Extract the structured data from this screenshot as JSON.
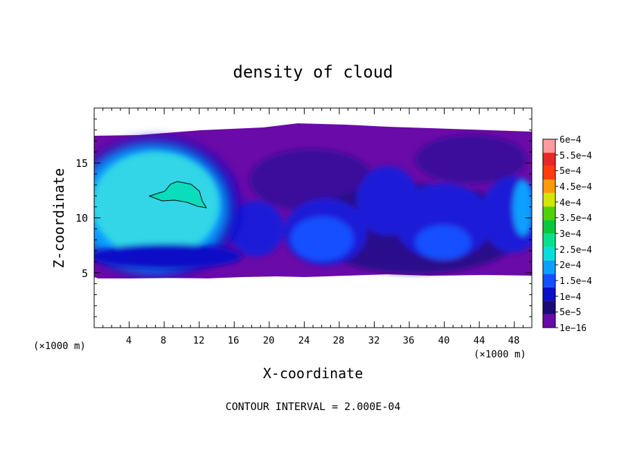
{
  "chart_data": {
    "type": "heatmap",
    "title": "density of cloud",
    "xlabel": "X-coordinate",
    "ylabel": "Z-coordinate",
    "x_units": "(×1000 m)",
    "z_units": "(×1000 m)",
    "footer": "CONTOUR INTERVAL = 2.000E-04",
    "xlim": [
      0,
      50
    ],
    "ylim": [
      0,
      20
    ],
    "x_ticks": [
      4,
      8,
      12,
      16,
      20,
      24,
      28,
      32,
      36,
      40,
      44,
      48
    ],
    "x_tick_labels": [
      "4",
      "8",
      "12",
      "16",
      "20",
      "24",
      "28",
      "32",
      "36",
      "40",
      "44",
      "48"
    ],
    "y_ticks": [
      5,
      10,
      15
    ],
    "y_tick_labels": [
      "5",
      "10",
      "15"
    ],
    "colorbar": {
      "levels": [
        "1e−16",
        "5e−5",
        "1e−4",
        "1.5e−4",
        "2e−4",
        "2.5e−4",
        "3e−4",
        "3.5e−4",
        "4e−4",
        "4.5e−4",
        "5e−4",
        "5.5e−4",
        "6e−4"
      ],
      "colors": [
        "#6a0aa8",
        "#1c0a7a",
        "#0a10c8",
        "#1450ff",
        "#0aa0ff",
        "#0adcdc",
        "#0ae08c",
        "#0ac83c",
        "#50d20a",
        "#d2e60a",
        "#ff9b0a",
        "#ff3c0a",
        "#e62828",
        "#ff9ba0"
      ]
    },
    "grid": false,
    "legend": "right"
  }
}
